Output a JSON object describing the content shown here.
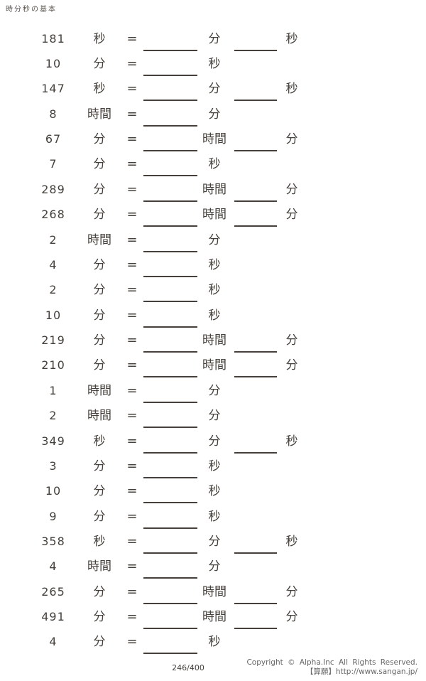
{
  "page": {
    "title": "時分秒の基本",
    "equals_sign": "="
  },
  "colors": {
    "ink": "#45403b",
    "footer_text": "#666666",
    "background": "#ffffff"
  },
  "problems": [
    {
      "value": "181",
      "unit": "秒",
      "answer1_unit": "分",
      "answer2_unit": "秒"
    },
    {
      "value": "10",
      "unit": "分",
      "answer1_unit": "秒",
      "answer2_unit": null
    },
    {
      "value": "147",
      "unit": "秒",
      "answer1_unit": "分",
      "answer2_unit": "秒"
    },
    {
      "value": "8",
      "unit": "時間",
      "answer1_unit": "分",
      "answer2_unit": null
    },
    {
      "value": "67",
      "unit": "分",
      "answer1_unit": "時間",
      "answer2_unit": "分"
    },
    {
      "value": "7",
      "unit": "分",
      "answer1_unit": "秒",
      "answer2_unit": null
    },
    {
      "value": "289",
      "unit": "分",
      "answer1_unit": "時間",
      "answer2_unit": "分"
    },
    {
      "value": "268",
      "unit": "分",
      "answer1_unit": "時間",
      "answer2_unit": "分"
    },
    {
      "value": "2",
      "unit": "時間",
      "answer1_unit": "分",
      "answer2_unit": null
    },
    {
      "value": "4",
      "unit": "分",
      "answer1_unit": "秒",
      "answer2_unit": null
    },
    {
      "value": "2",
      "unit": "分",
      "answer1_unit": "秒",
      "answer2_unit": null
    },
    {
      "value": "10",
      "unit": "分",
      "answer1_unit": "秒",
      "answer2_unit": null
    },
    {
      "value": "219",
      "unit": "分",
      "answer1_unit": "時間",
      "answer2_unit": "分"
    },
    {
      "value": "210",
      "unit": "分",
      "answer1_unit": "時間",
      "answer2_unit": "分"
    },
    {
      "value": "1",
      "unit": "時間",
      "answer1_unit": "分",
      "answer2_unit": null
    },
    {
      "value": "2",
      "unit": "時間",
      "answer1_unit": "分",
      "answer2_unit": null
    },
    {
      "value": "349",
      "unit": "秒",
      "answer1_unit": "分",
      "answer2_unit": "秒"
    },
    {
      "value": "3",
      "unit": "分",
      "answer1_unit": "秒",
      "answer2_unit": null
    },
    {
      "value": "10",
      "unit": "分",
      "answer1_unit": "秒",
      "answer2_unit": null
    },
    {
      "value": "9",
      "unit": "分",
      "answer1_unit": "秒",
      "answer2_unit": null
    },
    {
      "value": "358",
      "unit": "秒",
      "answer1_unit": "分",
      "answer2_unit": "秒"
    },
    {
      "value": "4",
      "unit": "時間",
      "answer1_unit": "分",
      "answer2_unit": null
    },
    {
      "value": "265",
      "unit": "分",
      "answer1_unit": "時間",
      "answer2_unit": "分"
    },
    {
      "value": "491",
      "unit": "分",
      "answer1_unit": "時間",
      "answer2_unit": "分"
    },
    {
      "value": "4",
      "unit": "分",
      "answer1_unit": "秒",
      "answer2_unit": null
    }
  ],
  "footer": {
    "page_number": "246/400",
    "copyright_line1": "Copyright © Alpha.Inc All Rights Reserved.",
    "copyright_line2": "【算願】http://www.sangan.jp/"
  }
}
